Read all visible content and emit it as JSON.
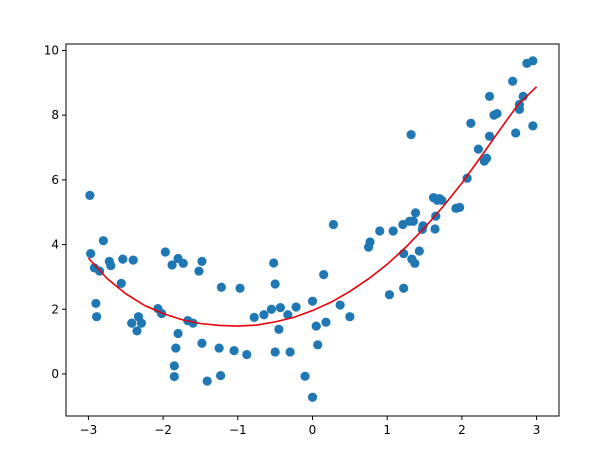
{
  "chart_data": {
    "type": "scatter",
    "title": "",
    "xlabel": "",
    "ylabel": "",
    "xlim": [
      -3.3,
      3.3
    ],
    "ylim": [
      -1.3,
      10.2
    ],
    "xticks": [
      -3,
      -2,
      -1,
      0,
      1,
      2,
      3
    ],
    "xtick_labels": [
      "−3",
      "−2",
      "−1",
      "0",
      "1",
      "2",
      "3"
    ],
    "yticks": [
      0,
      2,
      4,
      6,
      8,
      10
    ],
    "ytick_labels": [
      "0",
      "2",
      "4",
      "6",
      "8",
      "10"
    ],
    "grid": false,
    "colors": {
      "points": "#1f77b4",
      "fit": "#e8000b",
      "axes": "#000000"
    },
    "series": [
      {
        "kind": "scatter",
        "points": [
          [
            -2.98,
            5.52
          ],
          [
            -2.97,
            3.72
          ],
          [
            -2.92,
            3.28
          ],
          [
            -2.9,
            2.18
          ],
          [
            -2.89,
            1.77
          ],
          [
            -2.85,
            3.18
          ],
          [
            -2.8,
            4.12
          ],
          [
            -2.72,
            3.48
          ],
          [
            -2.7,
            3.35
          ],
          [
            -2.56,
            2.8
          ],
          [
            -2.54,
            3.55
          ],
          [
            -2.4,
            3.52
          ],
          [
            -2.42,
            1.57
          ],
          [
            -2.35,
            1.33
          ],
          [
            -2.33,
            1.77
          ],
          [
            -2.29,
            1.57
          ],
          [
            -2.07,
            2.02
          ],
          [
            -2.02,
            1.87
          ],
          [
            -1.97,
            3.77
          ],
          [
            -1.88,
            3.37
          ],
          [
            -1.85,
            0.25
          ],
          [
            -1.85,
            -0.08
          ],
          [
            -1.83,
            0.8
          ],
          [
            -1.8,
            1.25
          ],
          [
            -1.8,
            3.57
          ],
          [
            -1.73,
            3.42
          ],
          [
            -1.67,
            1.65
          ],
          [
            -1.6,
            1.57
          ],
          [
            -1.52,
            3.18
          ],
          [
            -1.48,
            3.48
          ],
          [
            -1.48,
            0.95
          ],
          [
            -1.41,
            -0.22
          ],
          [
            -1.25,
            0.8
          ],
          [
            -1.23,
            -0.05
          ],
          [
            -1.22,
            2.68
          ],
          [
            -1.05,
            0.72
          ],
          [
            -0.97,
            2.65
          ],
          [
            -0.88,
            0.6
          ],
          [
            -0.78,
            1.75
          ],
          [
            -0.65,
            1.83
          ],
          [
            -0.55,
            2.0
          ],
          [
            -0.52,
            3.43
          ],
          [
            -0.5,
            2.78
          ],
          [
            -0.5,
            0.68
          ],
          [
            -0.45,
            1.38
          ],
          [
            -0.43,
            2.05
          ],
          [
            -0.33,
            1.83
          ],
          [
            -0.3,
            0.68
          ],
          [
            -0.22,
            2.07
          ],
          [
            -0.1,
            -0.07
          ],
          [
            0.0,
            2.25
          ],
          [
            0.0,
            -0.72
          ],
          [
            0.05,
            1.48
          ],
          [
            0.07,
            0.9
          ],
          [
            0.15,
            3.07
          ],
          [
            0.18,
            1.6
          ],
          [
            0.28,
            4.62
          ],
          [
            0.37,
            2.13
          ],
          [
            0.5,
            1.77
          ],
          [
            0.75,
            3.92
          ],
          [
            0.77,
            4.08
          ],
          [
            0.9,
            4.42
          ],
          [
            1.03,
            2.45
          ],
          [
            1.08,
            4.42
          ],
          [
            1.21,
            4.62
          ],
          [
            1.22,
            2.65
          ],
          [
            1.22,
            3.72
          ],
          [
            1.3,
            4.72
          ],
          [
            1.32,
            7.4
          ],
          [
            1.33,
            3.55
          ],
          [
            1.35,
            4.72
          ],
          [
            1.37,
            3.42
          ],
          [
            1.38,
            4.98
          ],
          [
            1.43,
            3.8
          ],
          [
            1.47,
            4.47
          ],
          [
            1.48,
            4.58
          ],
          [
            1.62,
            5.45
          ],
          [
            1.64,
            4.48
          ],
          [
            1.65,
            4.88
          ],
          [
            1.67,
            5.37
          ],
          [
            1.7,
            5.42
          ],
          [
            1.73,
            5.37
          ],
          [
            1.92,
            5.12
          ],
          [
            1.97,
            5.15
          ],
          [
            2.07,
            6.05
          ],
          [
            2.12,
            7.75
          ],
          [
            2.22,
            6.95
          ],
          [
            2.3,
            6.58
          ],
          [
            2.33,
            6.67
          ],
          [
            2.37,
            8.58
          ],
          [
            2.37,
            7.35
          ],
          [
            2.43,
            8.0
          ],
          [
            2.47,
            8.05
          ],
          [
            2.68,
            9.05
          ],
          [
            2.72,
            7.45
          ],
          [
            2.77,
            8.33
          ],
          [
            2.77,
            8.18
          ],
          [
            2.82,
            8.58
          ],
          [
            2.87,
            9.6
          ],
          [
            2.95,
            9.68
          ],
          [
            2.95,
            7.67
          ]
        ]
      },
      {
        "kind": "line",
        "points": [
          [
            -3.0,
            3.58
          ],
          [
            -2.75,
            2.95
          ],
          [
            -2.5,
            2.48
          ],
          [
            -2.25,
            2.12
          ],
          [
            -2.0,
            1.87
          ],
          [
            -1.75,
            1.68
          ],
          [
            -1.5,
            1.56
          ],
          [
            -1.25,
            1.5
          ],
          [
            -1.0,
            1.48
          ],
          [
            -0.75,
            1.51
          ],
          [
            -0.5,
            1.61
          ],
          [
            -0.25,
            1.75
          ],
          [
            0.0,
            1.96
          ],
          [
            0.25,
            2.22
          ],
          [
            0.5,
            2.55
          ],
          [
            0.75,
            2.94
          ],
          [
            1.0,
            3.39
          ],
          [
            1.25,
            3.92
          ],
          [
            1.5,
            4.52
          ],
          [
            1.75,
            5.18
          ],
          [
            2.0,
            5.9
          ],
          [
            2.25,
            6.7
          ],
          [
            2.5,
            7.52
          ],
          [
            2.75,
            8.32
          ],
          [
            3.0,
            8.88
          ]
        ]
      }
    ]
  }
}
